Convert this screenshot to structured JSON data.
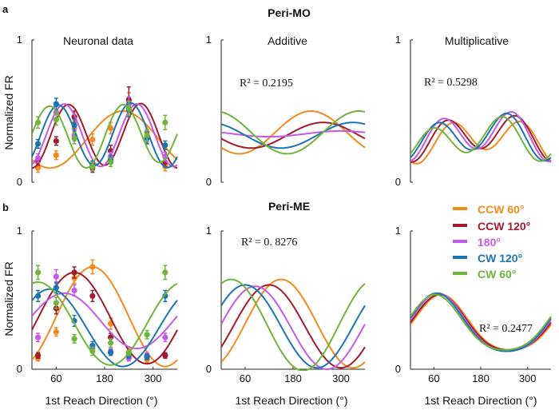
{
  "figure": {
    "panel_letters": [
      "a",
      "b"
    ],
    "row_titles": [
      "Peri-MO",
      "Peri-ME"
    ],
    "column_titles": [
      "Neuronal data",
      "Additive",
      "Multiplicative"
    ],
    "ylabel": "Normalized FR",
    "xlabel": "1st Reach Direction (°)",
    "r2": {
      "top_additive": "R² = 0.2195",
      "top_multiplicative": "R² = 0.5298",
      "bottom_additive": "R² = 0. 8276",
      "bottom_multiplicative": "R² = 0.2477"
    }
  },
  "legend": {
    "items": [
      {
        "label": "CCW 60°",
        "color": "#f28a1e"
      },
      {
        "label": "CCW 120°",
        "color": "#a21b2e"
      },
      {
        "label": "180°",
        "color": "#c45be6"
      },
      {
        "label": "CW 120°",
        "color": "#1c74b5"
      },
      {
        "label": "CW 60°",
        "color": "#71b43b"
      }
    ]
  },
  "chart_data": [
    {
      "id": "peri-mo-neuronal",
      "type": "line",
      "title": "Neuronal data",
      "row": "Peri-MO",
      "xlabel": "",
      "ylabel": "Normalized FR",
      "x_ticks": [
        60,
        180,
        300
      ],
      "y_ticks": [
        0,
        1
      ],
      "xlim": [
        0,
        360
      ],
      "ylim": [
        0,
        1
      ],
      "x_points": [
        15,
        60,
        105,
        150,
        195,
        240,
        285,
        330
      ],
      "series": [
        {
          "name": "CCW 60°",
          "color": "#f28a1e",
          "fit": {
            "mean": 0.3,
            "a1": 0.2,
            "p1": 225,
            "a2": 0.0,
            "p2": 0
          },
          "points": [
            0.1,
            0.19,
            0.38,
            0.3,
            0.38,
            0.57,
            0.35,
            0.11
          ],
          "errors": [
            0.03,
            0.03,
            0.05,
            0.04,
            0.04,
            0.06,
            0.04,
            0.03
          ]
        },
        {
          "name": "CCW 120°",
          "color": "#a21b2e",
          "fit": {
            "mean": 0.33,
            "a1": 0.01,
            "p1": 200,
            "a2": 0.22,
            "p2": 90
          },
          "points": [
            0.15,
            0.29,
            0.46,
            0.1,
            0.22,
            0.58,
            0.31,
            0.14
          ],
          "errors": [
            0.03,
            0.03,
            0.04,
            0.03,
            0.04,
            0.09,
            0.04,
            0.03
          ]
        },
        {
          "name": "180°",
          "color": "#c45be6",
          "fit": {
            "mean": 0.33,
            "a1": 0.0,
            "p1": 0,
            "a2": 0.22,
            "p2": 80
          },
          "points": [
            0.17,
            0.49,
            0.33,
            0.11,
            0.18,
            0.55,
            0.32,
            0.18
          ],
          "errors": [
            0.03,
            0.04,
            0.04,
            0.03,
            0.03,
            0.05,
            0.04,
            0.03
          ]
        },
        {
          "name": "CW 120°",
          "color": "#1c74b5",
          "fit": {
            "mean": 0.33,
            "a1": 0.01,
            "p1": 200,
            "a2": 0.22,
            "p2": 65
          },
          "points": [
            0.27,
            0.55,
            0.4,
            0.12,
            0.16,
            0.51,
            0.31,
            0.26
          ],
          "errors": [
            0.03,
            0.04,
            0.04,
            0.03,
            0.03,
            0.05,
            0.04,
            0.03
          ]
        },
        {
          "name": "CW 60°",
          "color": "#71b43b",
          "fit": {
            "mean": 0.33,
            "a1": 0.02,
            "p1": 300,
            "a2": 0.21,
            "p2": 45
          },
          "points": [
            0.42,
            0.44,
            0.31,
            0.11,
            0.14,
            0.52,
            0.33,
            0.42
          ],
          "errors": [
            0.04,
            0.04,
            0.04,
            0.03,
            0.03,
            0.05,
            0.04,
            0.05
          ]
        }
      ]
    },
    {
      "id": "peri-mo-additive",
      "type": "line",
      "title": "Additive",
      "row": "Peri-MO",
      "x_ticks": [
        60,
        180,
        300
      ],
      "y_ticks": [
        0,
        1
      ],
      "xlim": [
        0,
        360
      ],
      "ylim": [
        0,
        1
      ],
      "series": [
        {
          "name": "CCW 60°",
          "color": "#f28a1e",
          "fit": {
            "mean": 0.35,
            "a1": 0.15,
            "p1": 225,
            "a2": 0.0,
            "p2": 0
          }
        },
        {
          "name": "CCW 120°",
          "color": "#a21b2e",
          "fit": {
            "mean": 0.33,
            "a1": 0.09,
            "p1": 255,
            "a2": 0.0,
            "p2": 0
          }
        },
        {
          "name": "180°",
          "color": "#c45be6",
          "fit": {
            "mean": 0.34,
            "a1": 0.02,
            "p1": 300,
            "a2": 0.0,
            "p2": 0
          }
        },
        {
          "name": "CW 120°",
          "color": "#1c74b5",
          "fit": {
            "mean": 0.33,
            "a1": 0.09,
            "p1": 330,
            "a2": 0.0,
            "p2": 0
          }
        },
        {
          "name": "CW 60°",
          "color": "#71b43b",
          "fit": {
            "mean": 0.35,
            "a1": 0.15,
            "p1": 345,
            "a2": 0.0,
            "p2": 0
          }
        }
      ]
    },
    {
      "id": "peri-mo-multiplicative",
      "type": "line",
      "title": "Multiplicative",
      "row": "Peri-MO",
      "x_ticks": [
        60,
        180,
        300
      ],
      "y_ticks": [
        0,
        1
      ],
      "xlim": [
        0,
        360
      ],
      "ylim": [
        0,
        1
      ],
      "series": [
        {
          "name": "CCW 60°",
          "color": "#f28a1e",
          "fit": {
            "mean": 0.3,
            "a1": 0.05,
            "p1": 200,
            "a2": 0.12,
            "p2": 105
          }
        },
        {
          "name": "CCW 120°",
          "color": "#a21b2e",
          "fit": {
            "mean": 0.32,
            "a1": 0.05,
            "p1": 200,
            "a2": 0.13,
            "p2": 92
          }
        },
        {
          "name": "180°",
          "color": "#c45be6",
          "fit": {
            "mean": 0.33,
            "a1": 0.05,
            "p1": 200,
            "a2": 0.14,
            "p2": 82
          }
        },
        {
          "name": "CW 120°",
          "color": "#1c74b5",
          "fit": {
            "mean": 0.32,
            "a1": 0.05,
            "p1": 200,
            "a2": 0.13,
            "p2": 70
          }
        },
        {
          "name": "CW 60°",
          "color": "#71b43b",
          "fit": {
            "mean": 0.3,
            "a1": 0.05,
            "p1": 200,
            "a2": 0.12,
            "p2": 58
          }
        }
      ]
    },
    {
      "id": "peri-me-neuronal",
      "type": "line",
      "title": "",
      "row": "Peri-ME",
      "xlabel": "1st Reach Direction (°)",
      "ylabel": "Normalized FR",
      "x_ticks": [
        60,
        180,
        300
      ],
      "y_ticks": [
        0,
        1
      ],
      "xlim": [
        0,
        360
      ],
      "ylim": [
        0,
        1
      ],
      "x_points": [
        15,
        60,
        105,
        150,
        195,
        240,
        285,
        330
      ],
      "series": [
        {
          "name": "CCW 60°",
          "color": "#f28a1e",
          "fit": {
            "mean": 0.38,
            "a1": 0.36,
            "p1": 150,
            "a2": 0.0,
            "p2": 0
          },
          "points": [
            0.08,
            0.27,
            0.66,
            0.74,
            0.33,
            0.12,
            0.07,
            0.1
          ],
          "errors": [
            0.02,
            0.03,
            0.04,
            0.05,
            0.04,
            0.03,
            0.02,
            0.02
          ]
        },
        {
          "name": "CCW 120°",
          "color": "#a21b2e",
          "fit": {
            "mean": 0.37,
            "a1": 0.33,
            "p1": 105,
            "a2": 0.0,
            "p2": 0
          },
          "points": [
            0.1,
            0.44,
            0.7,
            0.53,
            0.23,
            0.12,
            0.09,
            0.1
          ],
          "errors": [
            0.02,
            0.04,
            0.04,
            0.04,
            0.03,
            0.02,
            0.02,
            0.02
          ]
        },
        {
          "name": "180°",
          "color": "#c45be6",
          "fit": {
            "mean": 0.35,
            "a1": 0.2,
            "p1": 80,
            "a2": 0.0,
            "p2": 0
          },
          "points": [
            0.23,
            0.67,
            0.57,
            0.15,
            0.13,
            0.08,
            0.1,
            0.23
          ],
          "errors": [
            0.03,
            0.05,
            0.04,
            0.03,
            0.02,
            0.02,
            0.02,
            0.03
          ]
        },
        {
          "name": "CW 120°",
          "color": "#1c74b5",
          "fit": {
            "mean": 0.3,
            "a1": 0.28,
            "p1": 45,
            "a2": 0.0,
            "p2": 0
          },
          "points": [
            0.53,
            0.59,
            0.35,
            0.17,
            0.12,
            0.1,
            0.09,
            0.53
          ],
          "errors": [
            0.04,
            0.04,
            0.04,
            0.03,
            0.02,
            0.02,
            0.02,
            0.04
          ]
        },
        {
          "name": "CW 60°",
          "color": "#71b43b",
          "fit": {
            "mean": 0.33,
            "a1": 0.3,
            "p1": 15,
            "a2": 0.0,
            "p2": 0
          },
          "points": [
            0.7,
            0.48,
            0.22,
            0.13,
            0.19,
            0.12,
            0.25,
            0.7
          ],
          "errors": [
            0.05,
            0.04,
            0.03,
            0.03,
            0.03,
            0.02,
            0.03,
            0.05
          ]
        }
      ]
    },
    {
      "id": "peri-me-additive",
      "type": "line",
      "title": "",
      "row": "Peri-ME",
      "xlabel": "1st Reach Direction (°)",
      "x_ticks": [
        60,
        180,
        300
      ],
      "y_ticks": [
        0,
        1
      ],
      "xlim": [
        0,
        360
      ],
      "ylim": [
        0,
        1
      ],
      "series": [
        {
          "name": "CCW 60°",
          "color": "#f28a1e",
          "fit": {
            "mean": 0.33,
            "a1": 0.32,
            "p1": 150,
            "a2": 0.0,
            "p2": 0
          }
        },
        {
          "name": "CCW 120°",
          "color": "#a21b2e",
          "fit": {
            "mean": 0.31,
            "a1": 0.3,
            "p1": 120,
            "a2": 0.0,
            "p2": 0
          }
        },
        {
          "name": "180°",
          "color": "#c45be6",
          "fit": {
            "mean": 0.3,
            "a1": 0.3,
            "p1": 85,
            "a2": 0.0,
            "p2": 0
          }
        },
        {
          "name": "CW 120°",
          "color": "#1c74b5",
          "fit": {
            "mean": 0.31,
            "a1": 0.3,
            "p1": 60,
            "a2": 0.0,
            "p2": 0
          }
        },
        {
          "name": "CW 60°",
          "color": "#71b43b",
          "fit": {
            "mean": 0.32,
            "a1": 0.33,
            "p1": 25,
            "a2": 0.0,
            "p2": 0
          }
        }
      ]
    },
    {
      "id": "peri-me-multiplicative",
      "type": "line",
      "title": "",
      "row": "Peri-ME",
      "xlabel": "1st Reach Direction (°)",
      "x_ticks": [
        60,
        180,
        300
      ],
      "y_ticks": [
        0,
        1
      ],
      "xlim": [
        0,
        360
      ],
      "ylim": [
        0,
        1
      ],
      "series": [
        {
          "name": "CCW 60°",
          "color": "#f28a1e",
          "fit": {
            "mean": 0.31,
            "a1": 0.2,
            "p1": 78,
            "a2": 0.03,
            "p2": 80
          }
        },
        {
          "name": "CCW 120°",
          "color": "#a21b2e",
          "fit": {
            "mean": 0.31,
            "a1": 0.2,
            "p1": 74,
            "a2": 0.03,
            "p2": 76
          }
        },
        {
          "name": "180°",
          "color": "#c45be6",
          "fit": {
            "mean": 0.31,
            "a1": 0.21,
            "p1": 70,
            "a2": 0.03,
            "p2": 72
          }
        },
        {
          "name": "CW 120°",
          "color": "#1c74b5",
          "fit": {
            "mean": 0.31,
            "a1": 0.21,
            "p1": 67,
            "a2": 0.03,
            "p2": 68
          }
        },
        {
          "name": "CW 60°",
          "color": "#71b43b",
          "fit": {
            "mean": 0.31,
            "a1": 0.2,
            "p1": 63,
            "a2": 0.03,
            "p2": 64
          }
        }
      ]
    }
  ]
}
